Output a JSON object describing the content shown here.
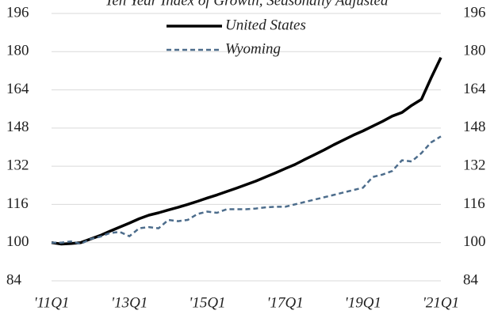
{
  "chart_data": {
    "type": "line",
    "title": "Ten Year Index of Growth, Seasonally Adjusted",
    "categories": [
      "'11Q1",
      null,
      null,
      null,
      null,
      null,
      null,
      null,
      "'13Q1",
      null,
      null,
      null,
      null,
      null,
      null,
      null,
      "'15Q1",
      null,
      null,
      null,
      null,
      null,
      null,
      null,
      "'17Q1",
      null,
      null,
      null,
      null,
      null,
      null,
      null,
      "'19Q1",
      null,
      null,
      null,
      null,
      null,
      null,
      null,
      "'21Q1"
    ],
    "series": [
      {
        "name": "United States",
        "color": "#000000",
        "values": [
          100,
          99.4,
          99.6,
          100,
          101.5,
          103,
          104.8,
          106.5,
          108.2,
          110,
          111.5,
          112.5,
          113.7,
          114.8,
          116,
          117.3,
          118.7,
          120,
          121.4,
          122.8,
          124.3,
          125.8,
          127.5,
          129.2,
          131,
          132.7,
          134.8,
          136.8,
          138.8,
          141,
          143,
          145,
          146.8,
          148.8,
          150.8,
          153,
          154.5,
          157.5,
          160,
          169,
          177.5
        ]
      },
      {
        "name": "Wyoming",
        "color": "#4d6d8c",
        "values": [
          100,
          100,
          100.5,
          99.5,
          101.5,
          102.5,
          104,
          104.5,
          102.7,
          106,
          106.5,
          106,
          109.5,
          109,
          109.5,
          112,
          113,
          112.5,
          114,
          114,
          114,
          114.3,
          114.8,
          115,
          115,
          116,
          117,
          118,
          119,
          120,
          121,
          122,
          123,
          127.5,
          128.5,
          130,
          134.5,
          134,
          137.5,
          142,
          144.5
        ],
        "dashed": true
      }
    ],
    "ylim": [
      84,
      196
    ],
    "yticks": [
      84,
      100,
      116,
      132,
      148,
      164,
      180,
      196
    ],
    "y2lim": [
      84,
      196
    ],
    "y2ticks": [
      84,
      100,
      116,
      132,
      148,
      164,
      180,
      196
    ],
    "grid": true,
    "legend": "top"
  }
}
